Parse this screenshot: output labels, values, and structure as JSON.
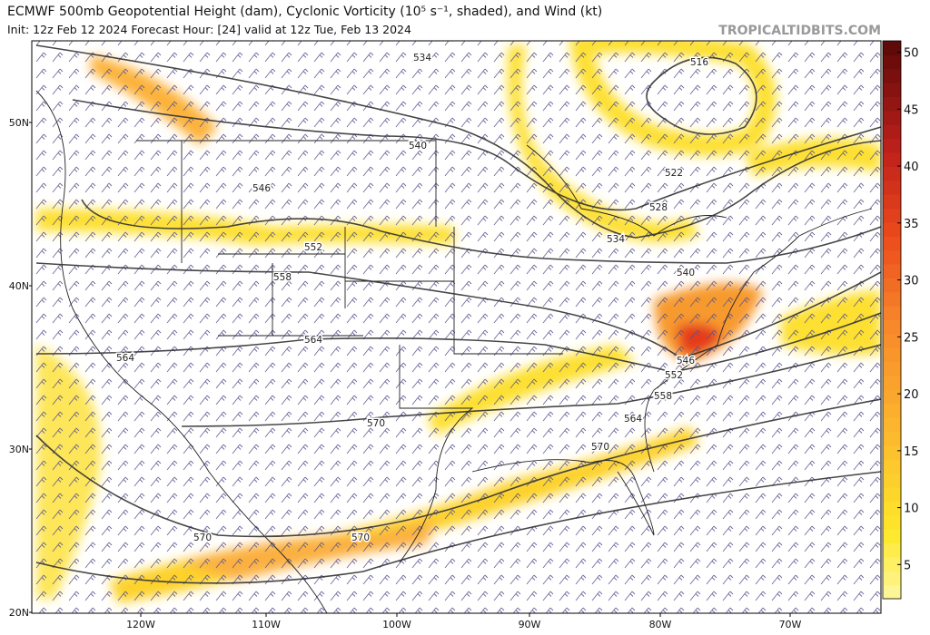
{
  "header": {
    "title": "ECMWF 500mb Geopotential Height (dam), Cyclonic Vorticity (10⁵ s⁻¹, shaded), and Wind (kt)",
    "subtitle": "Init: 12z Feb 12 2024   Forecast Hour: [24]   valid at 12z Tue, Feb 13 2024",
    "credit": "TROPICALTIDBITS.COM"
  },
  "map": {
    "lat_labels": [
      "50N",
      "40N",
      "30N",
      "20N"
    ],
    "lon_labels": [
      "120W",
      "110W",
      "100W",
      "90W",
      "80W",
      "70W"
    ],
    "contour_labels": [
      534,
      516,
      540,
      522,
      546,
      528,
      534,
      552,
      540,
      558,
      564,
      564,
      546,
      552,
      558,
      570,
      564,
      570,
      570,
      570
    ]
  },
  "colorbar": {
    "range": [
      2,
      51
    ],
    "ticks": [
      5,
      10,
      15,
      20,
      25,
      30,
      35,
      40,
      45,
      50
    ]
  }
}
